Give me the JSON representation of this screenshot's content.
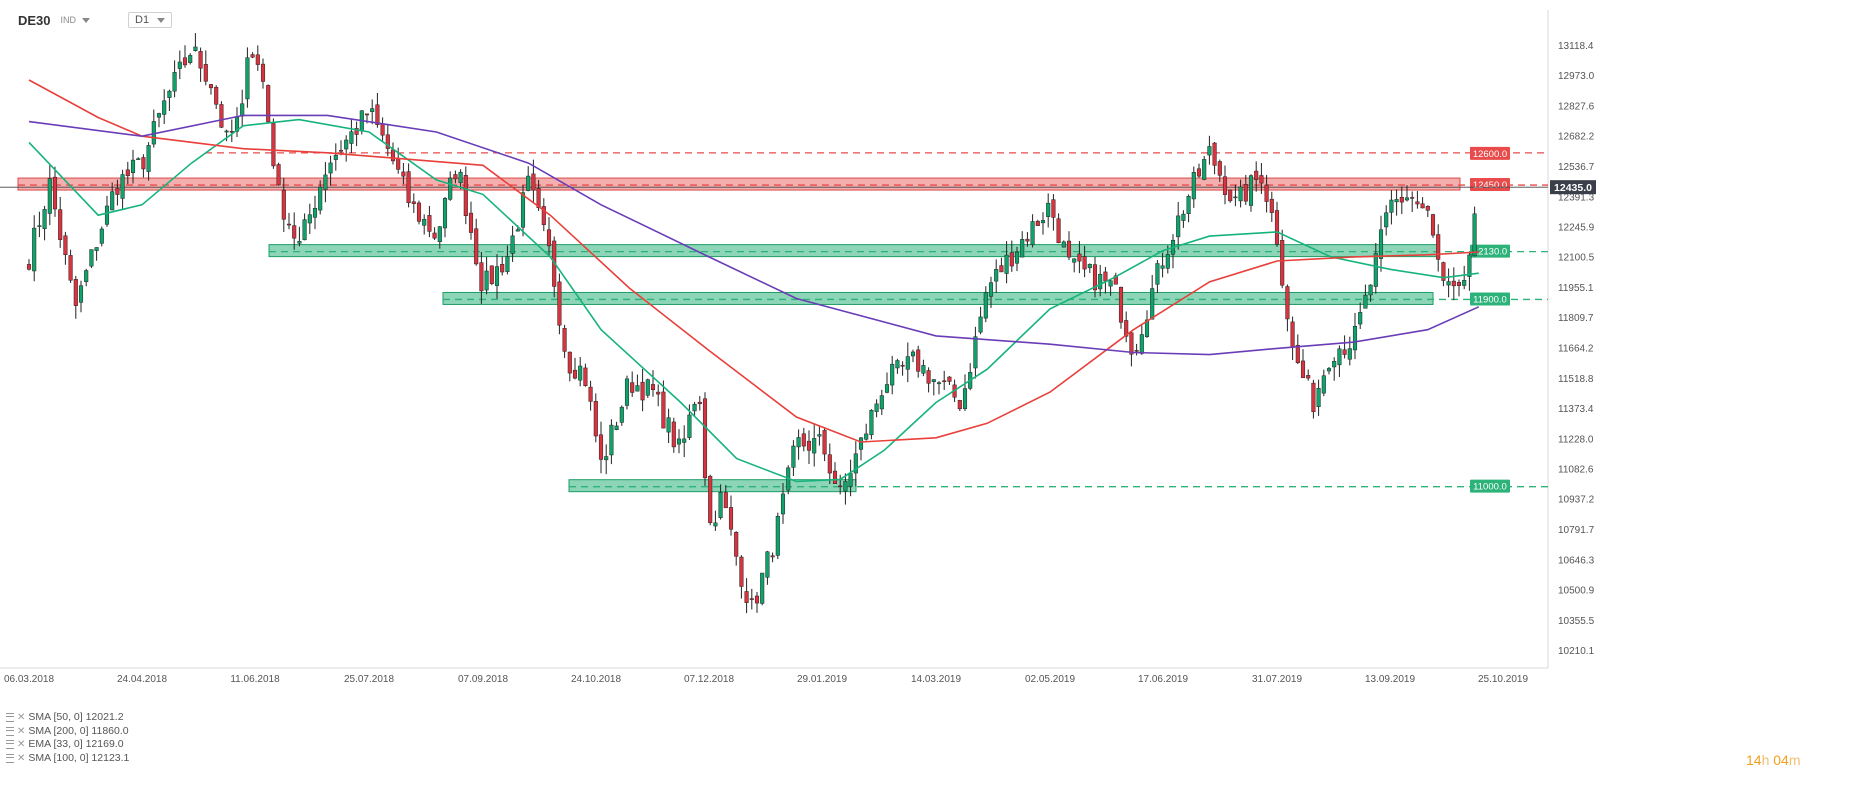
{
  "header": {
    "symbol": "DE30",
    "instrument_type": "IND",
    "timeframe": "D1"
  },
  "legend": [
    {
      "label": "SMA [50, 0] 12021.2"
    },
    {
      "label": "SMA [200, 0] 11860.0"
    },
    {
      "label": "EMA [33, 0] 12169.0"
    },
    {
      "label": "SMA [100, 0] 12123.1"
    }
  ],
  "countdown": {
    "hours": "14",
    "hours_unit": "h",
    "minutes": "04",
    "minutes_unit": "m"
  },
  "colors": {
    "up_candle": "#0fa36b",
    "down_candle": "#d9333f",
    "resistance": "#e94b4b",
    "support": "#2db37a",
    "sma50": "#16b37c",
    "sma100": "#e8403a",
    "sma200": "#6a3db8",
    "price_tag": "#3a3f4a"
  },
  "chart_data": {
    "type": "candlestick",
    "symbol": "DE30",
    "timeframe": "D1",
    "ylim": [
      10210.1,
      13200
    ],
    "y_ticks": [
      13118.4,
      12973.0,
      12827.6,
      12682.2,
      12536.7,
      12391.3,
      12245.9,
      12100.5,
      11955.1,
      11809.7,
      11664.2,
      11518.8,
      11373.4,
      11228.0,
      11082.6,
      10937.2,
      10791.7,
      10646.3,
      10500.9,
      10355.5,
      10210.1
    ],
    "x_ticks": [
      "06.03.2018",
      "24.04.2018",
      "11.06.2018",
      "25.07.2018",
      "07.09.2018",
      "24.10.2018",
      "07.12.2018",
      "29.01.2019",
      "14.03.2019",
      "02.05.2019",
      "17.06.2019",
      "31.07.2019",
      "13.09.2019",
      "25.10.2019"
    ],
    "current_price": 12435.0,
    "current_price_label": "12435.0",
    "levels": [
      {
        "value": 12600.0,
        "label": "12600.0",
        "kind": "resistance",
        "style": "dashed"
      },
      {
        "value": 12450.0,
        "label": "12450.0",
        "kind": "resistance",
        "style": "zone"
      },
      {
        "value": 12130.0,
        "label": "12130.0",
        "kind": "support",
        "style": "zone"
      },
      {
        "value": 11900.0,
        "label": "11900.0",
        "kind": "support",
        "style": "zone"
      },
      {
        "value": 11000.0,
        "label": "11000.0",
        "kind": "support",
        "style": "zone"
      }
    ],
    "close_path": [
      {
        "x": "06.03.2018",
        "y": 12100
      },
      {
        "x": "15.03.2018",
        "y": 12450
      },
      {
        "x": "26.03.2018",
        "y": 11850
      },
      {
        "x": "05.04.2018",
        "y": 12200
      },
      {
        "x": "13.04.2018",
        "y": 12450
      },
      {
        "x": "24.04.2018",
        "y": 12550
      },
      {
        "x": "04.05.2018",
        "y": 12850
      },
      {
        "x": "15.05.2018",
        "y": 13100
      },
      {
        "x": "23.05.2018",
        "y": 12950
      },
      {
        "x": "30.05.2018",
        "y": 12650
      },
      {
        "x": "06.06.2018",
        "y": 12800
      },
      {
        "x": "08.06.2018",
        "y": 13150
      },
      {
        "x": "14.06.2018",
        "y": 12950
      },
      {
        "x": "20.06.2018",
        "y": 12400
      },
      {
        "x": "28.06.2018",
        "y": 12150
      },
      {
        "x": "09.07.2018",
        "y": 12550
      },
      {
        "x": "19.07.2018",
        "y": 12700
      },
      {
        "x": "25.07.2018",
        "y": 12800
      },
      {
        "x": "02.08.2018",
        "y": 12600
      },
      {
        "x": "10.08.2018",
        "y": 12350
      },
      {
        "x": "20.08.2018",
        "y": 12200
      },
      {
        "x": "28.08.2018",
        "y": 12550
      },
      {
        "x": "07.09.2018",
        "y": 11950
      },
      {
        "x": "17.09.2018",
        "y": 12100
      },
      {
        "x": "26.09.2018",
        "y": 12450
      },
      {
        "x": "05.10.2018",
        "y": 12100
      },
      {
        "x": "12.10.2018",
        "y": 11600
      },
      {
        "x": "19.10.2018",
        "y": 11550
      },
      {
        "x": "26.10.2018",
        "y": 11100
      },
      {
        "x": "06.11.2018",
        "y": 11500
      },
      {
        "x": "15.11.2018",
        "y": 11450
      },
      {
        "x": "26.11.2018",
        "y": 11150
      },
      {
        "x": "03.12.2018",
        "y": 11500
      },
      {
        "x": "07.12.2018",
        "y": 10800
      },
      {
        "x": "13.12.2018",
        "y": 10950
      },
      {
        "x": "20.12.2018",
        "y": 10650
      },
      {
        "x": "27.12.2018",
        "y": 10400
      },
      {
        "x": "07.01.2019",
        "y": 10750
      },
      {
        "x": "17.01.2019",
        "y": 11200
      },
      {
        "x": "29.01.2019",
        "y": 11200
      },
      {
        "x": "05.02.2019",
        "y": 10950
      },
      {
        "x": "13.02.2019",
        "y": 11200
      },
      {
        "x": "22.02.2019",
        "y": 11500
      },
      {
        "x": "06.03.2019",
        "y": 11600
      },
      {
        "x": "14.03.2019",
        "y": 11500
      },
      {
        "x": "25.03.2019",
        "y": 11400
      },
      {
        "x": "05.04.2019",
        "y": 11950
      },
      {
        "x": "18.04.2019",
        "y": 12150
      },
      {
        "x": "02.05.2019",
        "y": 12350
      },
      {
        "x": "10.05.2019",
        "y": 12050
      },
      {
        "x": "20.05.2019",
        "y": 12000
      },
      {
        "x": "28.05.2019",
        "y": 11950
      },
      {
        "x": "05.06.2019",
        "y": 11650
      },
      {
        "x": "17.06.2019",
        "y": 12100
      },
      {
        "x": "27.06.2019",
        "y": 12400
      },
      {
        "x": "05.07.2019",
        "y": 12600
      },
      {
        "x": "15.07.2019",
        "y": 12350
      },
      {
        "x": "25.07.2019",
        "y": 12500
      },
      {
        "x": "31.07.2019",
        "y": 12200
      },
      {
        "x": "06.08.2019",
        "y": 11650
      },
      {
        "x": "14.08.2019",
        "y": 11400
      },
      {
        "x": "21.08.2019",
        "y": 11650
      },
      {
        "x": "30.08.2019",
        "y": 11700
      },
      {
        "x": "05.09.2019",
        "y": 11950
      },
      {
        "x": "13.09.2019",
        "y": 12350
      },
      {
        "x": "20.09.2019",
        "y": 12400
      },
      {
        "x": "27.09.2019",
        "y": 12300
      },
      {
        "x": "03.10.2019",
        "y": 11950
      },
      {
        "x": "09.10.2019",
        "y": 11900
      },
      {
        "x": "14.10.2019",
        "y": 12200
      },
      {
        "x": "16.10.2019",
        "y": 12435
      }
    ],
    "series": [
      {
        "name": "SMA [50, 0] 12021.2",
        "indicator": "sma50",
        "points": [
          {
            "x": "06.03.2018",
            "y": 12650
          },
          {
            "x": "05.04.2018",
            "y": 12300
          },
          {
            "x": "24.04.2018",
            "y": 12350
          },
          {
            "x": "15.05.2018",
            "y": 12550
          },
          {
            "x": "06.06.2018",
            "y": 12730
          },
          {
            "x": "28.06.2018",
            "y": 12760
          },
          {
            "x": "25.07.2018",
            "y": 12700
          },
          {
            "x": "20.08.2018",
            "y": 12470
          },
          {
            "x": "07.09.2018",
            "y": 12400
          },
          {
            "x": "05.10.2018",
            "y": 12100
          },
          {
            "x": "26.10.2018",
            "y": 11750
          },
          {
            "x": "26.11.2018",
            "y": 11400
          },
          {
            "x": "20.12.2018",
            "y": 11130
          },
          {
            "x": "17.01.2019",
            "y": 11020
          },
          {
            "x": "05.02.2019",
            "y": 11030
          },
          {
            "x": "22.02.2019",
            "y": 11170
          },
          {
            "x": "14.03.2019",
            "y": 11400
          },
          {
            "x": "05.04.2019",
            "y": 11560
          },
          {
            "x": "02.05.2019",
            "y": 11850
          },
          {
            "x": "28.05.2019",
            "y": 12000
          },
          {
            "x": "17.06.2019",
            "y": 12130
          },
          {
            "x": "05.07.2019",
            "y": 12200
          },
          {
            "x": "31.07.2019",
            "y": 12220
          },
          {
            "x": "21.08.2019",
            "y": 12100
          },
          {
            "x": "13.09.2019",
            "y": 12040
          },
          {
            "x": "03.10.2019",
            "y": 12000
          },
          {
            "x": "16.10.2019",
            "y": 12021.2
          }
        ]
      },
      {
        "name": "SMA [100, 0] 12123.1",
        "indicator": "sma100",
        "points": [
          {
            "x": "06.03.2018",
            "y": 12950
          },
          {
            "x": "05.04.2018",
            "y": 12770
          },
          {
            "x": "24.04.2018",
            "y": 12680
          },
          {
            "x": "06.06.2018",
            "y": 12620
          },
          {
            "x": "09.07.2018",
            "y": 12600
          },
          {
            "x": "07.09.2018",
            "y": 12540
          },
          {
            "x": "05.10.2018",
            "y": 12300
          },
          {
            "x": "06.11.2018",
            "y": 11950
          },
          {
            "x": "07.12.2018",
            "y": 11650
          },
          {
            "x": "17.01.2019",
            "y": 11330
          },
          {
            "x": "13.02.2019",
            "y": 11210
          },
          {
            "x": "14.03.2019",
            "y": 11230
          },
          {
            "x": "05.04.2019",
            "y": 11300
          },
          {
            "x": "02.05.2019",
            "y": 11450
          },
          {
            "x": "05.06.2019",
            "y": 11750
          },
          {
            "x": "05.07.2019",
            "y": 11980
          },
          {
            "x": "31.07.2019",
            "y": 12080
          },
          {
            "x": "30.08.2019",
            "y": 12100
          },
          {
            "x": "27.09.2019",
            "y": 12110
          },
          {
            "x": "16.10.2019",
            "y": 12123.1
          }
        ]
      },
      {
        "name": "SMA [200, 0] 11860.0",
        "indicator": "sma200",
        "points": [
          {
            "x": "06.03.2018",
            "y": 12750
          },
          {
            "x": "24.04.2018",
            "y": 12680
          },
          {
            "x": "06.06.2018",
            "y": 12780
          },
          {
            "x": "09.07.2018",
            "y": 12780
          },
          {
            "x": "20.08.2018",
            "y": 12700
          },
          {
            "x": "26.09.2018",
            "y": 12550
          },
          {
            "x": "26.10.2018",
            "y": 12350
          },
          {
            "x": "07.12.2018",
            "y": 12100
          },
          {
            "x": "17.01.2019",
            "y": 11900
          },
          {
            "x": "14.03.2019",
            "y": 11720
          },
          {
            "x": "02.05.2019",
            "y": 11680
          },
          {
            "x": "05.06.2019",
            "y": 11640
          },
          {
            "x": "05.07.2019",
            "y": 11630
          },
          {
            "x": "31.07.2019",
            "y": 11660
          },
          {
            "x": "30.08.2019",
            "y": 11690
          },
          {
            "x": "27.09.2019",
            "y": 11750
          },
          {
            "x": "16.10.2019",
            "y": 11860.0
          }
        ]
      }
    ]
  }
}
